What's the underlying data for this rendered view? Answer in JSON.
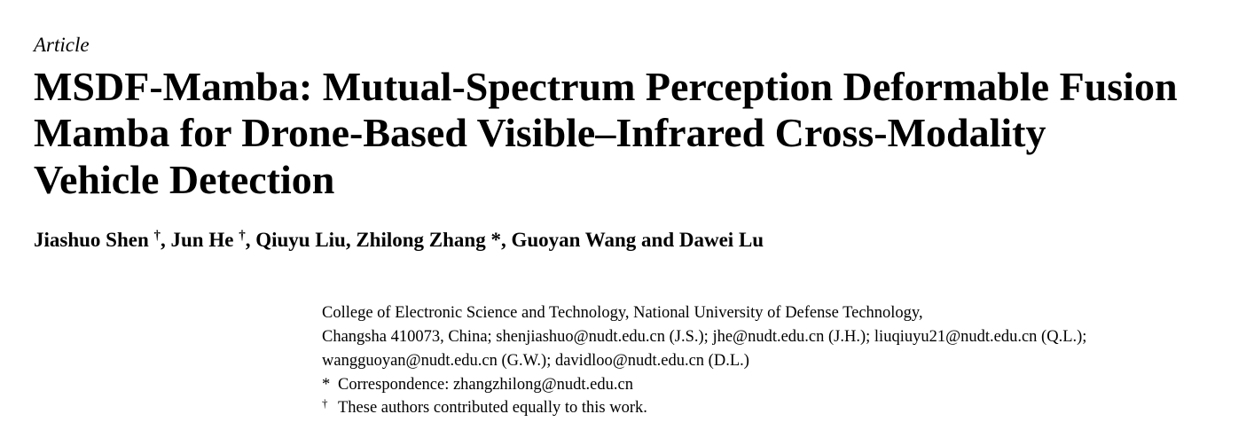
{
  "header": {
    "type": "Article",
    "title_lines": [
      "MSDF-Mamba: Mutual-Spectrum Perception Deformable Fusion",
      "Mamba for Drone-Based Visible–Infrared Cross-Modality",
      "Vehicle Detection"
    ],
    "authors": [
      {
        "text": "Jiashuo Shen "
      },
      {
        "sup": "†"
      },
      {
        "text": ", Jun He "
      },
      {
        "sup": "†"
      },
      {
        "text": ", Qiuyu Liu, Zhilong Zhang *, Guoyan Wang and Dawei Lu"
      }
    ]
  },
  "affiliation": {
    "lines": [
      "College of Electronic Science and Technology, National University of Defense Technology,",
      "Changsha 410073, China; shenjiashuo@nudt.edu.cn (J.S.); jhe@nudt.edu.cn (J.H.); liuqiuyu21@nudt.edu.cn (Q.L.);",
      "wangguoyan@nudt.edu.cn (G.W.); davidloo@nudt.edu.cn (D.L.)"
    ],
    "notes": [
      {
        "symbol": "*",
        "text": "Correspondence: zhangzhilong@nudt.edu.cn"
      },
      {
        "symbol": "†",
        "text": "These authors contributed equally to this work."
      }
    ]
  }
}
